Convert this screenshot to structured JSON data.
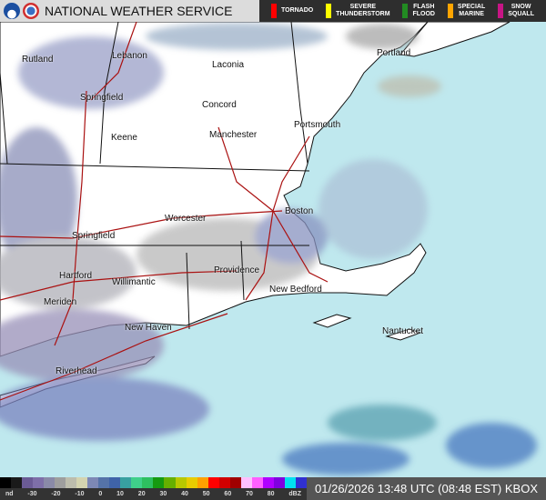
{
  "header": {
    "title": "National Weather Service",
    "warnings": [
      {
        "label": "TORNADO",
        "color": "#ff0000"
      },
      {
        "label": "SEVERE\nTHUNDERSTORM",
        "color": "#ffff00"
      },
      {
        "label": "FLASH\nFLOOD",
        "color": "#228b22"
      },
      {
        "label": "SPECIAL\nMARINE",
        "color": "#ffa500"
      },
      {
        "label": "SNOW\nSQUALL",
        "color": "#c71585"
      }
    ]
  },
  "cities": [
    {
      "name": "Rutland"
    },
    {
      "name": "Lebanon"
    },
    {
      "name": "Laconia"
    },
    {
      "name": "Portland"
    },
    {
      "name": "Springfield"
    },
    {
      "name": "Concord"
    },
    {
      "name": "Portsmouth"
    },
    {
      "name": "Keene"
    },
    {
      "name": "Manchester"
    },
    {
      "name": "Worcester"
    },
    {
      "name": "Boston"
    },
    {
      "name": "Springfield"
    },
    {
      "name": "Hartford"
    },
    {
      "name": "Providence"
    },
    {
      "name": "Willimantic"
    },
    {
      "name": "New Bedford"
    },
    {
      "name": "Meriden"
    },
    {
      "name": "New Haven"
    },
    {
      "name": "Nantucket"
    },
    {
      "name": "Riverhead"
    }
  ],
  "legend": {
    "ticks": [
      "nd",
      "-30",
      "-20",
      "-10",
      "0",
      "10",
      "20",
      "30",
      "40",
      "50",
      "60",
      "70",
      "80",
      "dBZ"
    ],
    "colors": [
      "#000000",
      "#1a1a1a",
      "#6b5b95",
      "#7e6fa8",
      "#8a8aa8",
      "#9e9e9e",
      "#bdbdad",
      "#d4d4b0",
      "#7d88b5",
      "#5573a8",
      "#3f63a8",
      "#38a0a0",
      "#3fd08a",
      "#2ec060",
      "#169a10",
      "#66b000",
      "#b8c800",
      "#e8cc00",
      "#ffa000",
      "#ff0000",
      "#d00000",
      "#a00000",
      "#ffc0ff",
      "#ff60ff",
      "#b000ff",
      "#8000e0",
      "#00e0f0",
      "#3030d0"
    ]
  },
  "timestamp": "01/26/2026 13:48 UTC (08:48 EST) KBOX"
}
